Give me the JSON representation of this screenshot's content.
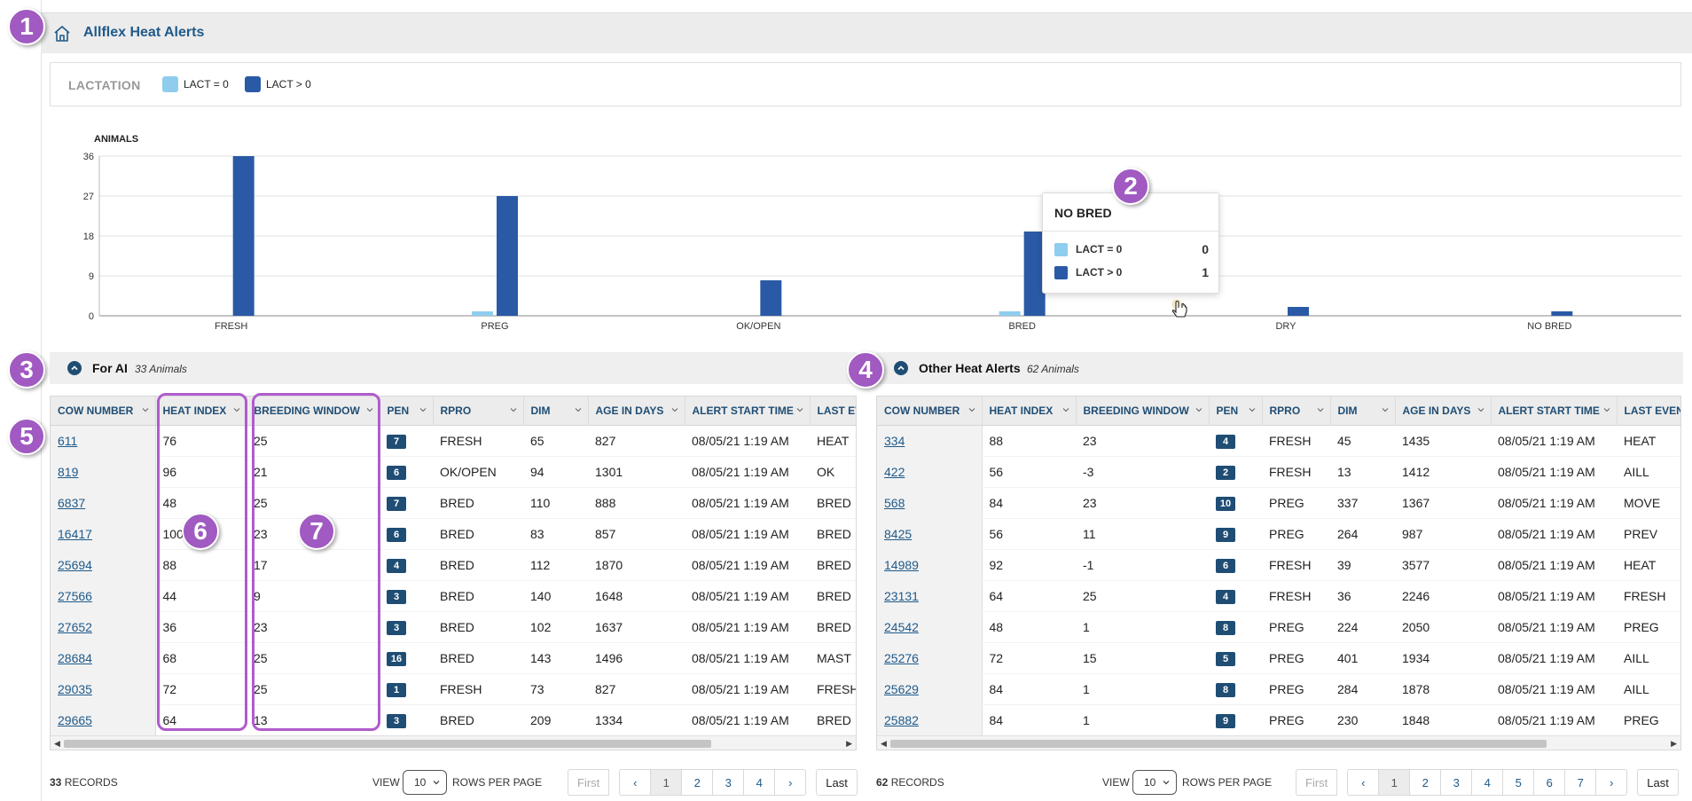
{
  "app": {
    "title": "Allflex Heat Alerts"
  },
  "legend": {
    "title": "LACTATION",
    "items": [
      {
        "label": "LACT = 0",
        "color": "#8fcdee"
      },
      {
        "label": "LACT > 0",
        "color": "#2a5aa6"
      }
    ]
  },
  "chart_data": {
    "type": "bar",
    "ylabel": "ANIMALS",
    "ylim": [
      0,
      36
    ],
    "yticks": [
      0,
      9,
      18,
      27,
      36
    ],
    "categories": [
      "FRESH",
      "PREG",
      "OK/OPEN",
      "BRED",
      "DRY",
      "NO BRED"
    ],
    "series": [
      {
        "name": "LACT = 0",
        "color": "#8fcdee",
        "values": [
          0,
          1,
          0,
          1,
          0,
          0
        ]
      },
      {
        "name": "LACT > 0",
        "color": "#2a5aa6",
        "values": [
          36,
          27,
          8,
          19,
          2,
          1
        ]
      }
    ],
    "grid": true,
    "legend": "top"
  },
  "tooltip": {
    "title": "NO BRED",
    "rows": [
      {
        "label": "LACT = 0",
        "value": "0",
        "color": "#8fcdee"
      },
      {
        "label": "LACT > 0",
        "value": "1",
        "color": "#2a5aa6"
      }
    ]
  },
  "left_section": {
    "title": "For AI",
    "count": "33 Animals",
    "columns": [
      "COW NUMBER",
      "HEAT INDEX",
      "BREEDING WINDOW",
      "PEN",
      "RPRO",
      "DIM",
      "AGE IN DAYS",
      "ALERT START TIME",
      "LAST EVENT N"
    ],
    "rows": [
      [
        "611",
        "76",
        "25",
        "7",
        "FRESH",
        "65",
        "827",
        "08/05/21 1:19 AM",
        "HEAT"
      ],
      [
        "819",
        "96",
        "21",
        "6",
        "OK/OPEN",
        "94",
        "1301",
        "08/05/21 1:19 AM",
        "OK"
      ],
      [
        "6837",
        "48",
        "25",
        "7",
        "BRED",
        "110",
        "888",
        "08/05/21 1:19 AM",
        "BRED"
      ],
      [
        "16417",
        "100",
        "23",
        "6",
        "BRED",
        "83",
        "857",
        "08/05/21 1:19 AM",
        "BRED"
      ],
      [
        "25694",
        "88",
        "17",
        "4",
        "BRED",
        "112",
        "1870",
        "08/05/21 1:19 AM",
        "BRED"
      ],
      [
        "27566",
        "44",
        "9",
        "3",
        "BRED",
        "140",
        "1648",
        "08/05/21 1:19 AM",
        "BRED"
      ],
      [
        "27652",
        "36",
        "23",
        "3",
        "BRED",
        "102",
        "1637",
        "08/05/21 1:19 AM",
        "BRED"
      ],
      [
        "28684",
        "68",
        "25",
        "16",
        "BRED",
        "143",
        "1496",
        "08/05/21 1:19 AM",
        "MAST"
      ],
      [
        "29035",
        "72",
        "25",
        "1",
        "FRESH",
        "73",
        "827",
        "08/05/21 1:19 AM",
        "FRESH"
      ],
      [
        "29665",
        "64",
        "13",
        "3",
        "BRED",
        "209",
        "1334",
        "08/05/21 1:19 AM",
        "BRED"
      ]
    ],
    "records": "33",
    "records_label": "RECORDS",
    "view_label": "VIEW",
    "rows_per_page": "10",
    "rpp_label": "ROWS PER PAGE",
    "pages": [
      "1",
      "2",
      "3",
      "4"
    ]
  },
  "right_section": {
    "title": "Other Heat Alerts",
    "count": "62 Animals",
    "columns": [
      "COW NUMBER",
      "HEAT INDEX",
      "BREEDING WINDOW",
      "PEN",
      "RPRO",
      "DIM",
      "AGE IN DAYS",
      "ALERT START TIME",
      "LAST EVENT NAM"
    ],
    "rows": [
      [
        "334",
        "88",
        "23",
        "4",
        "FRESH",
        "45",
        "1435",
        "08/05/21 1:19 AM",
        "HEAT"
      ],
      [
        "422",
        "56",
        "-3",
        "2",
        "FRESH",
        "13",
        "1412",
        "08/05/21 1:19 AM",
        "AILL"
      ],
      [
        "568",
        "84",
        "23",
        "10",
        "PREG",
        "337",
        "1367",
        "08/05/21 1:19 AM",
        "MOVE"
      ],
      [
        "8425",
        "56",
        "11",
        "9",
        "PREG",
        "264",
        "987",
        "08/05/21 1:19 AM",
        "PREV"
      ],
      [
        "14989",
        "92",
        "-1",
        "6",
        "FRESH",
        "39",
        "3577",
        "08/05/21 1:19 AM",
        "HEAT"
      ],
      [
        "23131",
        "64",
        "25",
        "4",
        "FRESH",
        "36",
        "2246",
        "08/05/21 1:19 AM",
        "FRESH"
      ],
      [
        "24542",
        "48",
        "1",
        "8",
        "PREG",
        "224",
        "2050",
        "08/05/21 1:19 AM",
        "PREG"
      ],
      [
        "25276",
        "72",
        "15",
        "5",
        "PREG",
        "401",
        "1934",
        "08/05/21 1:19 AM",
        "AILL"
      ],
      [
        "25629",
        "84",
        "1",
        "8",
        "PREG",
        "284",
        "1878",
        "08/05/21 1:19 AM",
        "AILL"
      ],
      [
        "25882",
        "84",
        "1",
        "9",
        "PREG",
        "230",
        "1848",
        "08/05/21 1:19 AM",
        "PREG"
      ]
    ],
    "records": "62",
    "records_label": "RECORDS",
    "view_label": "VIEW",
    "rows_per_page": "10",
    "rpp_label": "ROWS PER PAGE",
    "pages": [
      "1",
      "2",
      "3",
      "4",
      "5",
      "6",
      "7"
    ]
  },
  "pager": {
    "first": "First",
    "last": "Last",
    "prev": "‹",
    "next": "›"
  },
  "callouts": [
    "1",
    "2",
    "3",
    "4",
    "5",
    "6",
    "7"
  ]
}
